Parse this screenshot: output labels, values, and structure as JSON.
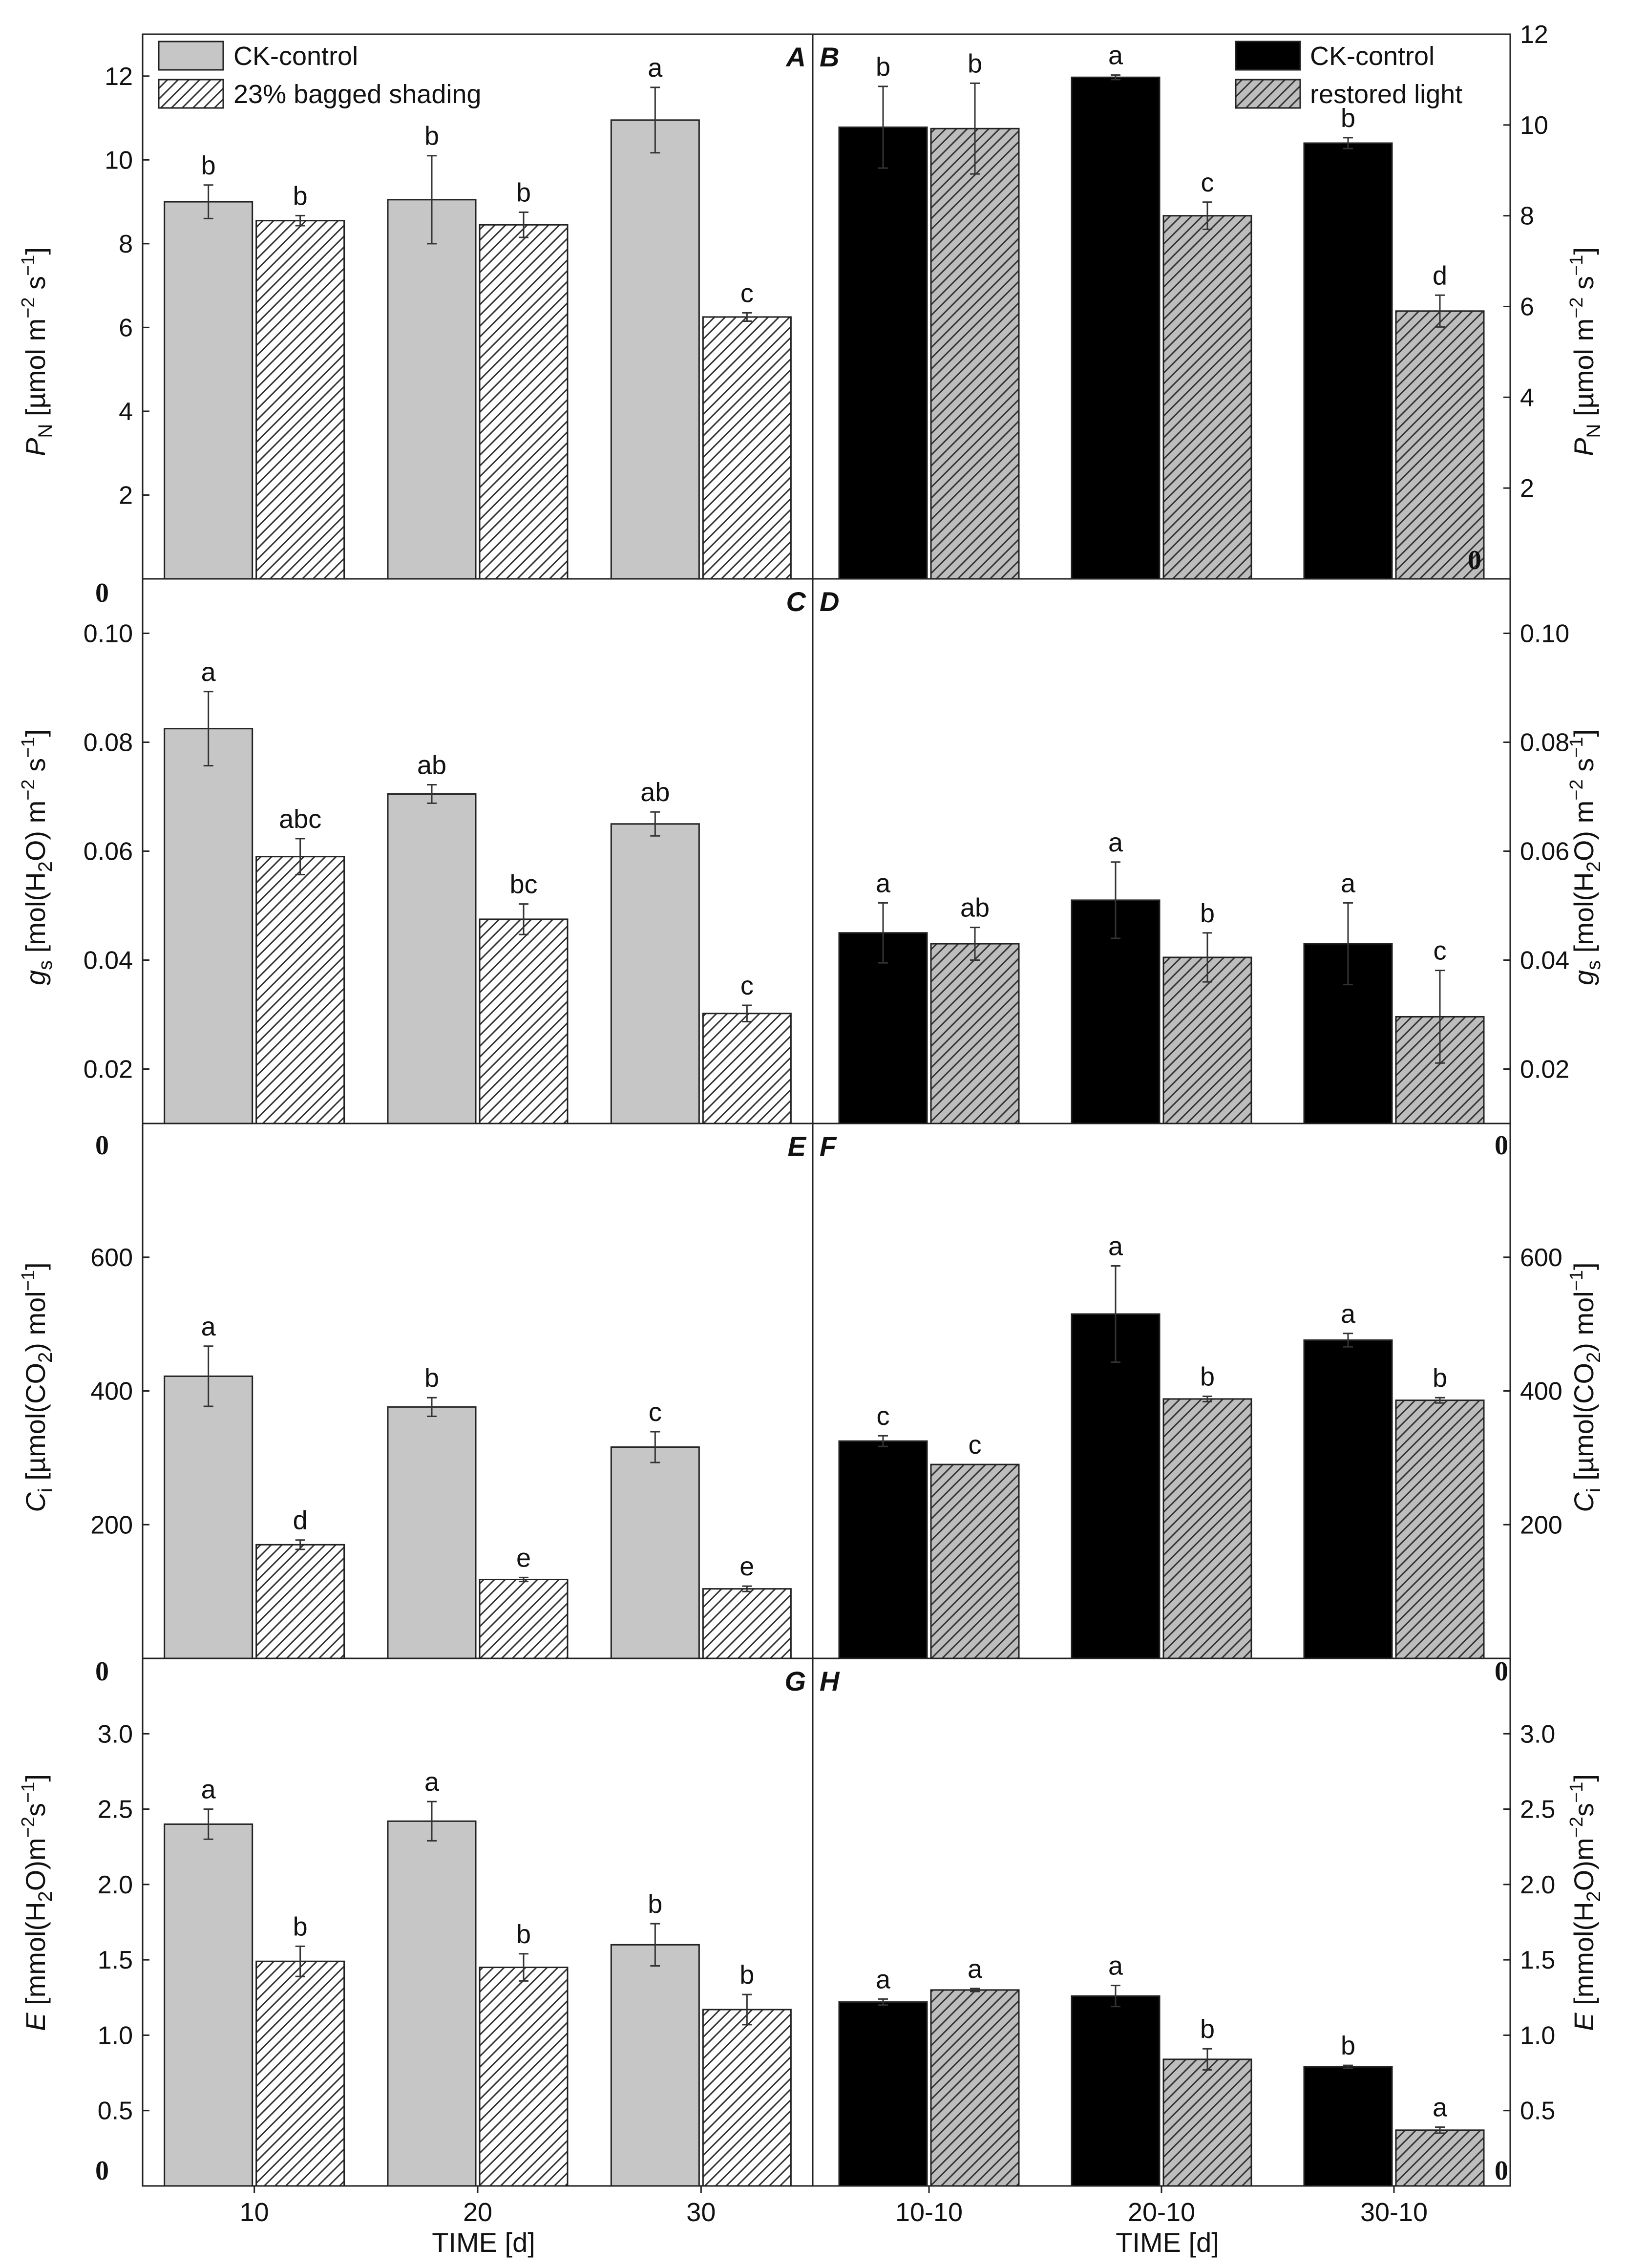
{
  "figure": {
    "left_xlabel": "TIME [d]",
    "right_xlabel": "TIME [d]",
    "zero_label": "0",
    "colors": {
      "ck_left": "#c6c6c6",
      "ck_right": "#000000",
      "shade_left_bg": "#ffffff",
      "restored_bg": "#bdbdbd",
      "hatch": "#333333",
      "frame": "#222222"
    }
  },
  "legends": {
    "left": [
      "CK-control",
      "23% bagged shading"
    ],
    "right": [
      "CK-control",
      "restored light"
    ]
  },
  "chart_data": [
    {
      "panel": "A",
      "type": "bar",
      "side": "left",
      "categories": [
        "10",
        "20",
        "30"
      ],
      "ylim": [
        0,
        13
      ],
      "yticks": [
        "2",
        "4",
        "6",
        "8",
        "10",
        "12"
      ],
      "ylabel": "P N [µmol m-2 s-1]",
      "series": [
        {
          "name": "CK-control",
          "values": [
            9.0,
            9.05,
            10.95
          ],
          "errors": [
            0.4,
            1.05,
            0.78
          ],
          "labels": [
            "b",
            "b",
            "a"
          ]
        },
        {
          "name": "23% bagged shading",
          "values": [
            8.55,
            8.45,
            6.25
          ],
          "errors": [
            0.12,
            0.3,
            0.1
          ],
          "labels": [
            "b",
            "b",
            "c"
          ]
        }
      ]
    },
    {
      "panel": "B",
      "type": "bar",
      "side": "right",
      "categories": [
        "10-10",
        "20-10",
        "30-10"
      ],
      "ylim": [
        0,
        12
      ],
      "yticks": [
        "2",
        "4",
        "6",
        "8",
        "10",
        "12"
      ],
      "ylabel": "P N [µmol m-2 s-1]",
      "series": [
        {
          "name": "CK-control",
          "values": [
            9.95,
            11.05,
            9.6
          ],
          "errors": [
            0.9,
            0.05,
            0.12
          ],
          "labels": [
            "b",
            "a",
            "b"
          ]
        },
        {
          "name": "restored light",
          "values": [
            9.92,
            8.0,
            5.9
          ],
          "errors": [
            1.0,
            0.3,
            0.35
          ],
          "labels": [
            "b",
            "c",
            "d"
          ]
        }
      ]
    },
    {
      "panel": "C",
      "type": "bar",
      "side": "left",
      "categories": [
        "10",
        "20",
        "30"
      ],
      "ylim": [
        0.01,
        0.11
      ],
      "yticks": [
        "0.02",
        "0.04",
        "0.06",
        "0.08",
        "0.10"
      ],
      "ylabel": "gs [mol(H2O) m-2 s-1]",
      "series": [
        {
          "name": "CK-control",
          "values": [
            0.0825,
            0.0705,
            0.065
          ],
          "errors": [
            0.0068,
            0.0017,
            0.0022
          ],
          "labels": [
            "a",
            "ab",
            "ab"
          ]
        },
        {
          "name": "23% bagged shading",
          "values": [
            0.059,
            0.0475,
            0.0302
          ],
          "errors": [
            0.0033,
            0.0028,
            0.0015
          ],
          "labels": [
            "abc",
            "bc",
            "c"
          ]
        }
      ]
    },
    {
      "panel": "D",
      "type": "bar",
      "side": "right",
      "categories": [
        "10-10",
        "20-10",
        "30-10"
      ],
      "ylim": [
        0.01,
        0.11
      ],
      "yticks": [
        "0.02",
        "0.04",
        "0.06",
        "0.08",
        "0.10"
      ],
      "ylabel": "gs [mol(H2O) m-2 s-1]",
      "series": [
        {
          "name": "CK-control",
          "values": [
            0.045,
            0.051,
            0.043
          ],
          "errors": [
            0.0055,
            0.007,
            0.0075
          ],
          "labels": [
            "a",
            "a",
            "a"
          ]
        },
        {
          "name": "restored light",
          "values": [
            0.043,
            0.0405,
            0.0296
          ],
          "errors": [
            0.003,
            0.0045,
            0.0085
          ],
          "labels": [
            "ab",
            "b",
            "c"
          ]
        }
      ]
    },
    {
      "panel": "E",
      "type": "bar",
      "side": "left",
      "categories": [
        "10",
        "20",
        "30"
      ],
      "ylim": [
        0,
        800
      ],
      "yticks": [
        "200",
        "400",
        "600"
      ],
      "ylabel": "Ci [µmol(CO2) mol-1]",
      "series": [
        {
          "name": "CK-control",
          "values": [
            422,
            376,
            316
          ],
          "errors": [
            45,
            14,
            23
          ],
          "labels": [
            "a",
            "b",
            "c"
          ]
        },
        {
          "name": "23% bagged shading",
          "values": [
            170,
            118,
            104
          ],
          "errors": [
            7,
            3,
            4
          ],
          "labels": [
            "d",
            "e",
            "e"
          ]
        }
      ]
    },
    {
      "panel": "F",
      "type": "bar",
      "side": "right",
      "categories": [
        "10-10",
        "20-10",
        "30-10"
      ],
      "ylim": [
        0,
        800
      ],
      "yticks": [
        "200",
        "400",
        "600"
      ],
      "ylabel": "Ci [µmol(CO2) mol-1]",
      "series": [
        {
          "name": "CK-control",
          "values": [
            325,
            515,
            476
          ],
          "errors": [
            8,
            72,
            10
          ],
          "labels": [
            "c",
            "a",
            "a"
          ]
        },
        {
          "name": "restored light",
          "values": [
            290,
            388,
            386
          ],
          "errors": [
            0,
            4,
            4
          ],
          "labels": [
            "c",
            "b",
            "b"
          ]
        }
      ]
    },
    {
      "panel": "G",
      "type": "bar",
      "side": "left",
      "categories": [
        "10",
        "20",
        "30"
      ],
      "ylim": [
        0,
        3.5
      ],
      "yticks": [
        "0.5",
        "1.0",
        "1.5",
        "2.0",
        "2.5",
        "3.0"
      ],
      "ylabel": "E [mmol(H2O) m-2 s-1]",
      "series": [
        {
          "name": "CK-control",
          "values": [
            2.4,
            2.42,
            1.6
          ],
          "errors": [
            0.1,
            0.13,
            0.14
          ],
          "labels": [
            "a",
            "a",
            "b"
          ]
        },
        {
          "name": "23% bagged shading",
          "values": [
            1.49,
            1.45,
            1.17
          ],
          "errors": [
            0.1,
            0.09,
            0.1
          ],
          "labels": [
            "b",
            "b",
            "b"
          ]
        }
      ]
    },
    {
      "panel": "H",
      "type": "bar",
      "side": "right",
      "categories": [
        "10-10",
        "20-10",
        "30-10"
      ],
      "ylim": [
        0,
        3.5
      ],
      "yticks": [
        "0.5",
        "1.0",
        "1.5",
        "2.0",
        "2.5",
        "3.0"
      ],
      "ylabel": "E [mmol(H2O) m-2 s-1]",
      "series": [
        {
          "name": "CK-control",
          "values": [
            1.22,
            1.26,
            0.79
          ],
          "errors": [
            0.02,
            0.07,
            0.01
          ],
          "labels": [
            "a",
            "a",
            "b"
          ]
        },
        {
          "name": "restored light",
          "values": [
            1.3,
            0.84,
            0.37
          ],
          "errors": [
            0.01,
            0.07,
            0.02
          ],
          "labels": [
            "a",
            "b",
            "a"
          ]
        }
      ]
    }
  ]
}
